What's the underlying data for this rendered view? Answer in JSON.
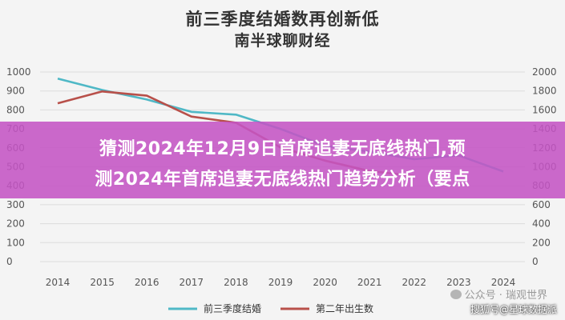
{
  "chart_data": {
    "type": "line",
    "title": "前三季度结婚数再创新低",
    "subtitle": "南半球聊财经",
    "x": [
      "2014",
      "2015",
      "2016",
      "2017",
      "2018",
      "2019",
      "2020",
      "2021",
      "2022",
      "2023",
      "2024"
    ],
    "y_left": {
      "ticks": [
        "1000",
        "900",
        "800",
        "700",
        "600",
        "500",
        "400",
        "300",
        "200",
        "100",
        "0"
      ],
      "ylim": [
        0,
        1000
      ]
    },
    "y_right": {
      "ticks": [
        "2000",
        "1800",
        "1600",
        "1400",
        "1200",
        "1000",
        "800",
        "600",
        "400",
        "200",
        "0"
      ],
      "ylim": [
        0,
        2000
      ]
    },
    "series": [
      {
        "name": "前三季度结婚",
        "axis": "left",
        "color": "#4fb8c6",
        "values": [
          965,
          905,
          855,
          790,
          775,
          700,
          610,
          580,
          540,
          560,
          475
        ]
      },
      {
        "name": "第二年出生数",
        "axis": "right",
        "color": "#b8504a",
        "values": [
          1670,
          1795,
          1750,
          1530,
          1465,
          1205,
          1065,
          955,
          905,
          null,
          null
        ]
      }
    ],
    "grid": true,
    "legend": "bottom"
  },
  "banner": {
    "line1": "猜测2024年12月9日首席追妻无底线热门,预",
    "line2": "测2024年首席追妻无底线热门趋势分析（要点"
  },
  "watermarks": {
    "wechat": "公众号 · 瑞观世界",
    "sohu": "搜狐号@星球数据派"
  }
}
